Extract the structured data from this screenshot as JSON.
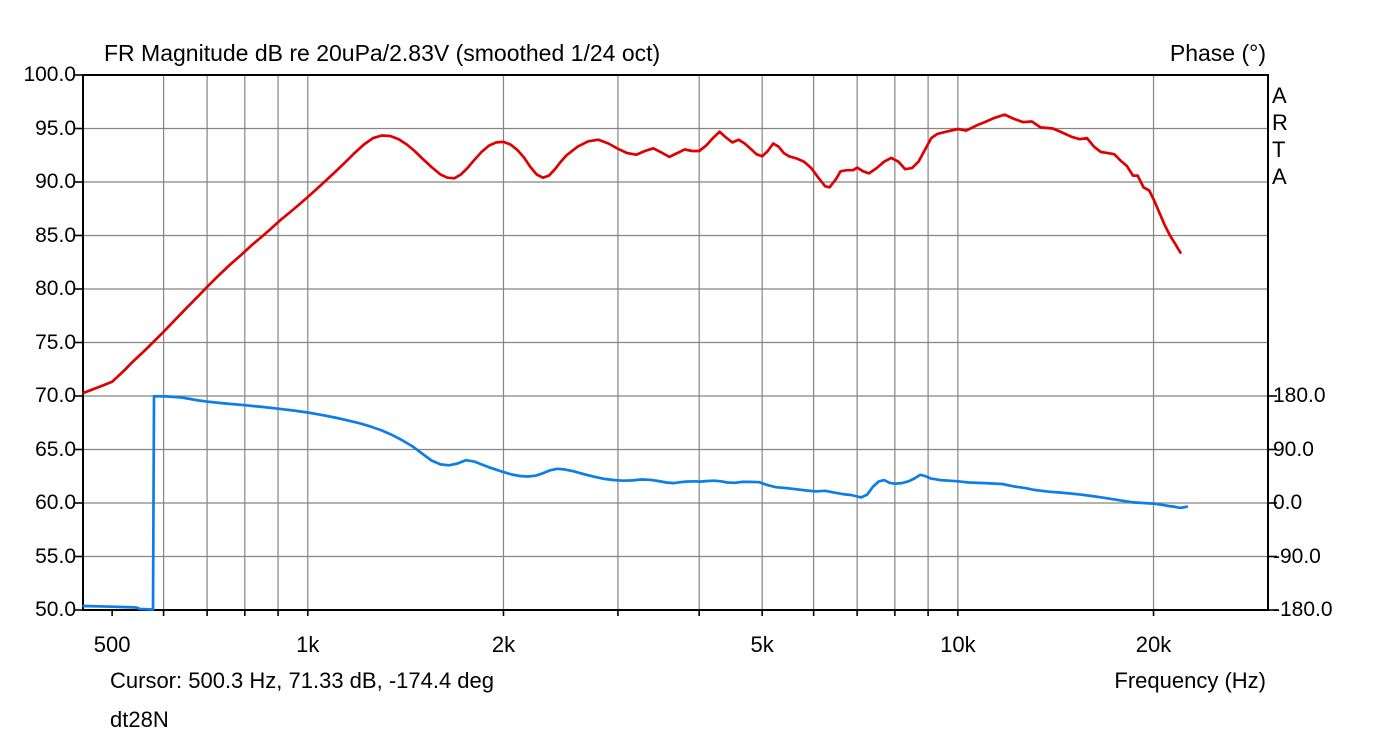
{
  "title": "FR Magnitude dB re 20uPa/2.83V (smoothed 1/24 oct)",
  "phase_axis_title": "Phase (°)",
  "frequency_axis_title": "Frequency (Hz)",
  "cursor_readout": "Cursor: 500.3 Hz, 71.33 dB, -174.4 deg",
  "curve_name": "dt28N",
  "watermark": {
    "letters": [
      "A",
      "R",
      "T",
      "A"
    ]
  },
  "colors": {
    "magnitude_curve": "#dd0101",
    "phase_curve": "#0d7de8",
    "grid": "#858585",
    "axis_border": "#000000",
    "background": "#ffffff",
    "text": "#000000"
  },
  "axes": {
    "left": {
      "ticks": [
        {
          "label": "100.0",
          "db": 100
        },
        {
          "label": "95.0",
          "db": 95
        },
        {
          "label": "90.0",
          "db": 90
        },
        {
          "label": "85.0",
          "db": 85
        },
        {
          "label": "80.0",
          "db": 80
        },
        {
          "label": "75.0",
          "db": 75
        },
        {
          "label": "70.0",
          "db": 70
        },
        {
          "label": "65.0",
          "db": 65
        },
        {
          "label": "60.0",
          "db": 60
        },
        {
          "label": "55.0",
          "db": 55
        },
        {
          "label": "50.0",
          "db": 50
        }
      ]
    },
    "right": {
      "ticks": [
        {
          "label": "180.0",
          "deg": 180
        },
        {
          "label": "90.0",
          "deg": 90
        },
        {
          "label": "0.0",
          "deg": 0
        },
        {
          "label": "-90.0",
          "deg": -90
        },
        {
          "label": "-180.0",
          "deg": -180
        }
      ]
    },
    "bottom": {
      "ticks": [
        {
          "label": "500",
          "hz": 500
        },
        {
          "label": "1k",
          "hz": 1000
        },
        {
          "label": "2k",
          "hz": 2000
        },
        {
          "label": "5k",
          "hz": 5000
        },
        {
          "label": "10k",
          "hz": 10000
        },
        {
          "label": "20k",
          "hz": 20000
        }
      ]
    }
  },
  "chart_data": {
    "type": "line",
    "title": "FR Magnitude dB re 20uPa/2.83V (smoothed 1/24 oct)",
    "x_scale": "log",
    "x_range_hz": [
      451,
      30000
    ],
    "y_left_db": [
      50,
      100
    ],
    "y_right_deg": [
      -180,
      180
    ],
    "grid": true,
    "grid_freqs_hz": [
      600,
      700,
      800,
      900,
      1000,
      2000,
      3000,
      4000,
      5000,
      6000,
      7000,
      8000,
      9000,
      10000,
      20000
    ],
    "cursor": {
      "hz": 500.3,
      "db": 71.33,
      "deg": -174.4
    },
    "series": [
      {
        "name": "magnitude_db",
        "axis": "left",
        "color": "#dd0101",
        "points": [
          [
            452,
            70.3
          ],
          [
            480,
            70.9
          ],
          [
            500,
            71.33
          ],
          [
            520,
            72.3
          ],
          [
            540,
            73.3
          ],
          [
            560,
            74.2
          ],
          [
            580,
            75.1
          ],
          [
            600,
            76.0
          ],
          [
            620,
            76.9
          ],
          [
            650,
            78.2
          ],
          [
            680,
            79.4
          ],
          [
            700,
            80.2
          ],
          [
            730,
            81.3
          ],
          [
            760,
            82.3
          ],
          [
            790,
            83.2
          ],
          [
            820,
            84.1
          ],
          [
            850,
            84.9
          ],
          [
            880,
            85.7
          ],
          [
            910,
            86.5
          ],
          [
            940,
            87.2
          ],
          [
            970,
            87.9
          ],
          [
            1000,
            88.6
          ],
          [
            1030,
            89.3
          ],
          [
            1060,
            90.0
          ],
          [
            1100,
            90.9
          ],
          [
            1140,
            91.8
          ],
          [
            1180,
            92.7
          ],
          [
            1220,
            93.5
          ],
          [
            1260,
            94.1
          ],
          [
            1300,
            94.35
          ],
          [
            1340,
            94.3
          ],
          [
            1380,
            94.0
          ],
          [
            1420,
            93.5
          ],
          [
            1460,
            92.9
          ],
          [
            1500,
            92.2
          ],
          [
            1550,
            91.4
          ],
          [
            1600,
            90.7
          ],
          [
            1640,
            90.4
          ],
          [
            1680,
            90.35
          ],
          [
            1720,
            90.7
          ],
          [
            1760,
            91.3
          ],
          [
            1800,
            92.0
          ],
          [
            1850,
            92.8
          ],
          [
            1900,
            93.4
          ],
          [
            1950,
            93.7
          ],
          [
            2000,
            93.75
          ],
          [
            2050,
            93.5
          ],
          [
            2100,
            93.0
          ],
          [
            2150,
            92.3
          ],
          [
            2200,
            91.4
          ],
          [
            2250,
            90.7
          ],
          [
            2300,
            90.4
          ],
          [
            2350,
            90.6
          ],
          [
            2400,
            91.2
          ],
          [
            2450,
            91.9
          ],
          [
            2500,
            92.5
          ],
          [
            2600,
            93.3
          ],
          [
            2700,
            93.8
          ],
          [
            2800,
            93.95
          ],
          [
            2900,
            93.6
          ],
          [
            3000,
            93.1
          ],
          [
            3100,
            92.7
          ],
          [
            3200,
            92.55
          ],
          [
            3300,
            92.9
          ],
          [
            3400,
            93.15
          ],
          [
            3500,
            92.75
          ],
          [
            3600,
            92.35
          ],
          [
            3700,
            92.7
          ],
          [
            3800,
            93.05
          ],
          [
            3900,
            92.9
          ],
          [
            4000,
            92.9
          ],
          [
            4100,
            93.4
          ],
          [
            4200,
            94.1
          ],
          [
            4300,
            94.7
          ],
          [
            4400,
            94.15
          ],
          [
            4500,
            93.7
          ],
          [
            4600,
            93.95
          ],
          [
            4700,
            93.6
          ],
          [
            4800,
            93.1
          ],
          [
            4900,
            92.6
          ],
          [
            5000,
            92.4
          ],
          [
            5100,
            92.9
          ],
          [
            5200,
            93.6
          ],
          [
            5300,
            93.3
          ],
          [
            5400,
            92.7
          ],
          [
            5500,
            92.4
          ],
          [
            5650,
            92.2
          ],
          [
            5800,
            91.9
          ],
          [
            5950,
            91.3
          ],
          [
            6100,
            90.4
          ],
          [
            6250,
            89.6
          ],
          [
            6350,
            89.5
          ],
          [
            6500,
            90.3
          ],
          [
            6600,
            91.0
          ],
          [
            6750,
            91.1
          ],
          [
            6900,
            91.1
          ],
          [
            7000,
            91.35
          ],
          [
            7150,
            91.0
          ],
          [
            7300,
            90.8
          ],
          [
            7500,
            91.3
          ],
          [
            7700,
            91.9
          ],
          [
            7900,
            92.25
          ],
          [
            8100,
            91.9
          ],
          [
            8300,
            91.2
          ],
          [
            8500,
            91.3
          ],
          [
            8700,
            91.9
          ],
          [
            8900,
            93.0
          ],
          [
            9100,
            94.1
          ],
          [
            9300,
            94.5
          ],
          [
            9600,
            94.7
          ],
          [
            10000,
            94.95
          ],
          [
            10300,
            94.8
          ],
          [
            10700,
            95.3
          ],
          [
            11000,
            95.6
          ],
          [
            11400,
            96.0
          ],
          [
            11800,
            96.3
          ],
          [
            12200,
            95.9
          ],
          [
            12600,
            95.6
          ],
          [
            13000,
            95.65
          ],
          [
            13400,
            95.1
          ],
          [
            14000,
            95.0
          ],
          [
            14500,
            94.6
          ],
          [
            15000,
            94.2
          ],
          [
            15400,
            94.0
          ],
          [
            15800,
            94.1
          ],
          [
            16200,
            93.3
          ],
          [
            16600,
            92.8
          ],
          [
            17000,
            92.7
          ],
          [
            17400,
            92.6
          ],
          [
            17800,
            92.0
          ],
          [
            18200,
            91.5
          ],
          [
            18600,
            90.6
          ],
          [
            18900,
            90.6
          ],
          [
            19300,
            89.5
          ],
          [
            19700,
            89.2
          ],
          [
            20000,
            88.4
          ],
          [
            20400,
            87.2
          ],
          [
            20800,
            86.0
          ],
          [
            21200,
            85.0
          ],
          [
            21600,
            84.2
          ],
          [
            22000,
            83.4
          ]
        ]
      },
      {
        "name": "phase_deg",
        "axis": "right",
        "color": "#0d7de8",
        "points": [
          [
            452,
            -173.2
          ],
          [
            500,
            -174.4
          ],
          [
            525,
            -175.2
          ],
          [
            545,
            -175.8
          ],
          [
            552,
            -178.3
          ],
          [
            565,
            -178.7
          ],
          [
            578,
            -179.4
          ],
          [
            580,
            179.7
          ],
          [
            605,
            179.4
          ],
          [
            640,
            177.5
          ],
          [
            680,
            172.5
          ],
          [
            700,
            170.5
          ],
          [
            750,
            167.2
          ],
          [
            800,
            164.6
          ],
          [
            850,
            161.6
          ],
          [
            900,
            158.6
          ],
          [
            950,
            155.6
          ],
          [
            1000,
            152.2
          ],
          [
            1050,
            148.2
          ],
          [
            1100,
            143.8
          ],
          [
            1150,
            139.2
          ],
          [
            1200,
            134.2
          ],
          [
            1250,
            128.6
          ],
          [
            1300,
            122
          ],
          [
            1350,
            114
          ],
          [
            1400,
            105
          ],
          [
            1450,
            95
          ],
          [
            1500,
            83
          ],
          [
            1550,
            71.5
          ],
          [
            1600,
            65
          ],
          [
            1650,
            63.5
          ],
          [
            1700,
            66.5
          ],
          [
            1750,
            72
          ],
          [
            1800,
            70
          ],
          [
            1850,
            65
          ],
          [
            1900,
            60
          ],
          [
            1950,
            56
          ],
          [
            2000,
            52
          ],
          [
            2060,
            48
          ],
          [
            2120,
            45.5
          ],
          [
            2180,
            44.5
          ],
          [
            2240,
            46
          ],
          [
            2300,
            50
          ],
          [
            2360,
            55
          ],
          [
            2420,
            57.5
          ],
          [
            2480,
            56.5
          ],
          [
            2560,
            53.5
          ],
          [
            2660,
            48.5
          ],
          [
            2760,
            44
          ],
          [
            2860,
            40.5
          ],
          [
            2960,
            38.5
          ],
          [
            3060,
            37.5
          ],
          [
            3160,
            38
          ],
          [
            3260,
            39.5
          ],
          [
            3360,
            39
          ],
          [
            3460,
            37
          ],
          [
            3560,
            34.5
          ],
          [
            3660,
            33.5
          ],
          [
            3740,
            35
          ],
          [
            3820,
            36
          ],
          [
            3920,
            36.5
          ],
          [
            4020,
            36
          ],
          [
            4120,
            37
          ],
          [
            4220,
            37.5
          ],
          [
            4320,
            36.5
          ],
          [
            4420,
            34.5
          ],
          [
            4540,
            34
          ],
          [
            4660,
            35.5
          ],
          [
            4780,
            35.5
          ],
          [
            4950,
            35
          ],
          [
            5100,
            30
          ],
          [
            5250,
            26.5
          ],
          [
            5450,
            25
          ],
          [
            5650,
            23
          ],
          [
            5850,
            21
          ],
          [
            6050,
            19.5
          ],
          [
            6250,
            20.5
          ],
          [
            6450,
            17.5
          ],
          [
            6650,
            15
          ],
          [
            6850,
            13.5
          ],
          [
            7000,
            11
          ],
          [
            7100,
            9.5
          ],
          [
            7250,
            14
          ],
          [
            7400,
            27
          ],
          [
            7550,
            36
          ],
          [
            7700,
            38.5
          ],
          [
            7850,
            34
          ],
          [
            8000,
            32.5
          ],
          [
            8200,
            33.5
          ],
          [
            8400,
            36.5
          ],
          [
            8600,
            42
          ],
          [
            8750,
            47.5
          ],
          [
            8900,
            45.5
          ],
          [
            9100,
            41
          ],
          [
            9400,
            38.5
          ],
          [
            9700,
            37.5
          ],
          [
            10000,
            36.5
          ],
          [
            10400,
            34.5
          ],
          [
            11000,
            33.5
          ],
          [
            11700,
            32
          ],
          [
            12200,
            28
          ],
          [
            12700,
            25
          ],
          [
            13100,
            22
          ],
          [
            13800,
            19
          ],
          [
            14400,
            17.5
          ],
          [
            14900,
            16
          ],
          [
            15500,
            14
          ],
          [
            16000,
            12
          ],
          [
            16700,
            9
          ],
          [
            17400,
            6
          ],
          [
            18000,
            3.5
          ],
          [
            18600,
            1
          ],
          [
            19300,
            0
          ],
          [
            20000,
            -1
          ],
          [
            20600,
            -3
          ],
          [
            21100,
            -5
          ],
          [
            21600,
            -6.5
          ],
          [
            21950,
            -8
          ],
          [
            22200,
            -7.5
          ],
          [
            22500,
            -6.2
          ]
        ]
      }
    ]
  }
}
